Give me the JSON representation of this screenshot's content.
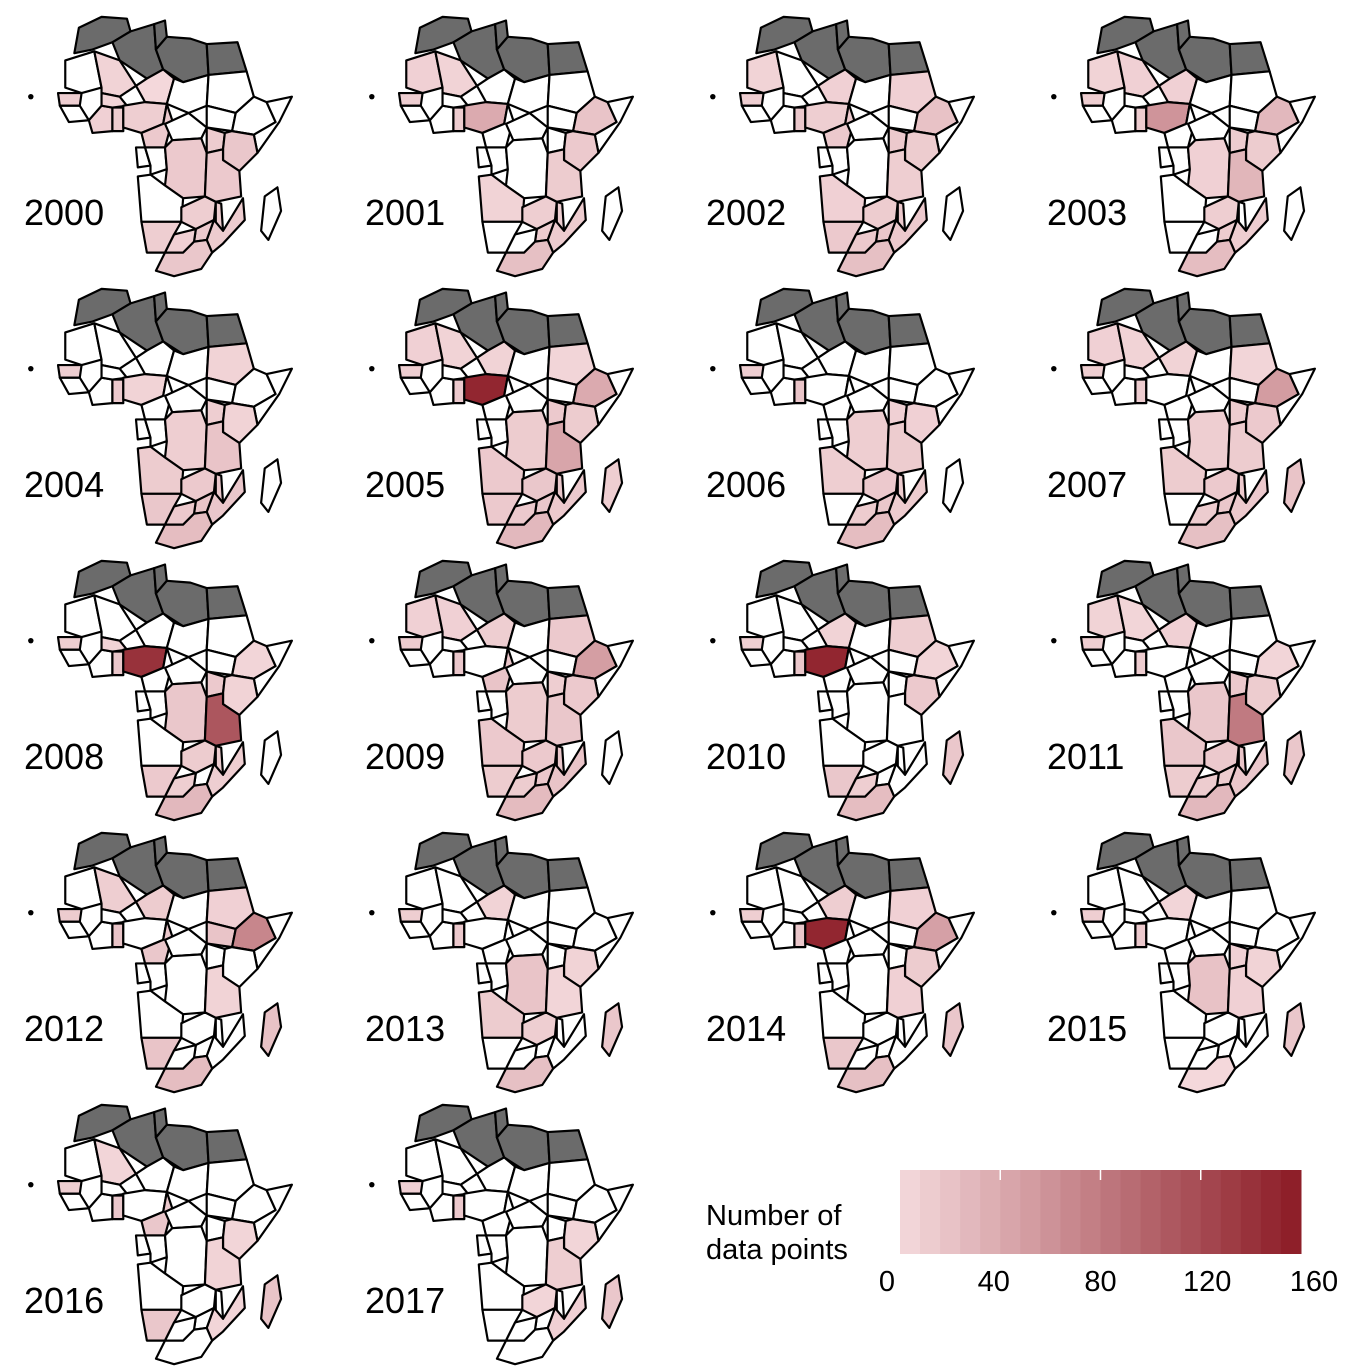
{
  "years": [
    "2000",
    "2001",
    "2002",
    "2003",
    "2004",
    "2005",
    "2006",
    "2007",
    "2008",
    "2009",
    "2010",
    "2011",
    "2012",
    "2013",
    "2014",
    "2015",
    "2016",
    "2017"
  ],
  "colors": {
    "excluded": "#6b6b6b",
    "zero": "#ffffff",
    "low": "#f5dadd",
    "high": "#8b1a24",
    "border": "#000000"
  },
  "legend": {
    "title_line1": "Number of",
    "title_line2": "data points",
    "ticks": [
      "0",
      "40",
      "80",
      "120",
      "160"
    ],
    "min": 0,
    "max": 160
  },
  "chart_data": {
    "type": "heatmap",
    "variable": "Number of data points",
    "region": "Africa",
    "excluded_regions": [
      "Morocco",
      "Algeria",
      "Tunisia",
      "Libya",
      "Egypt"
    ],
    "panels": [
      {
        "year": "2000",
        "values": {
          "Mali": 6,
          "Niger": 2,
          "Chad": 0,
          "Sudan": 0,
          "Nigeria": 10,
          "Ghana": 12,
          "Cote d'Ivoire": 8,
          "Burkina Faso": 4,
          "Cameroon": 14,
          "DR Congo": 14,
          "Uganda": 12,
          "Kenya": 16,
          "Tanzania": 14,
          "Zambia": 10,
          "Malawi": 12,
          "Mozambique": 12,
          "Zimbabwe": 14,
          "Namibia": 10,
          "Botswana": 8,
          "South Africa": 16,
          "Senegal": 10
        }
      },
      {
        "year": "2001",
        "values": {
          "Mauritania": 8,
          "Mali": 6,
          "Nigeria": 40,
          "Ethiopia": 18,
          "Kenya": 14,
          "Tanzania": 12,
          "Angola": 6,
          "Zambia": 10,
          "Malawi": 10,
          "Mozambique": 12,
          "Zimbabwe": 12,
          "South Africa": 22,
          "Senegal": 10,
          "Ghana": 12
        }
      },
      {
        "year": "2002",
        "values": {
          "Mauritania": 6,
          "Niger": 8,
          "Sudan": 8,
          "Ethiopia": 20,
          "Nigeria": 10,
          "Ghana": 16,
          "Cameroon": 14,
          "Uganda": 14,
          "Kenya": 12,
          "Tanzania": 10,
          "Angola": 8,
          "Zambia": 12,
          "Malawi": 14,
          "Mozambique": 14,
          "Zimbabwe": 16,
          "Namibia": 14,
          "Botswana": 14,
          "South Africa": 22,
          "Senegal": 10
        }
      },
      {
        "year": "2003",
        "values": {
          "Mauritania": 6,
          "Mali": 8,
          "Niger": 8,
          "Nigeria": 58,
          "Ethiopia": 28,
          "DR Congo": 8,
          "Uganda": 12,
          "Kenya": 12,
          "Tanzania": 30,
          "Zambia": 10,
          "Mozambique": 10,
          "Zimbabwe": 12,
          "South Africa": 24,
          "Senegal": 10,
          "Ghana": 12
        }
      },
      {
        "year": "2004",
        "values": {
          "Sudan": 6,
          "Nigeria": 6,
          "Ghana": 14,
          "DR Congo": 10,
          "Uganda": 10,
          "Kenya": 6,
          "Tanzania": 18,
          "Angola": 12,
          "Zambia": 14,
          "Malawi": 16,
          "Mozambique": 16,
          "Zimbabwe": 18,
          "Namibia": 16,
          "Botswana": 14,
          "South Africa": 24,
          "Senegal": 10
        }
      },
      {
        "year": "2005",
        "values": {
          "Mauritania": 8,
          "Mali": 6,
          "Niger": 6,
          "Sudan": 4,
          "Nigeria": 150,
          "Ethiopia": 40,
          "DR Congo": 12,
          "Uganda": 14,
          "Kenya": 12,
          "Tanzania": 44,
          "Angola": 14,
          "Zambia": 16,
          "Malawi": 16,
          "Mozambique": 14,
          "Zimbabwe": 16,
          "Namibia": 14,
          "Botswana": 14,
          "South Africa": 28,
          "Senegal": 10,
          "Ghana": 14,
          "Madagascar": 10
        }
      },
      {
        "year": "2006",
        "values": {
          "Ghana": 18,
          "DR Congo": 10,
          "Uganda": 8,
          "Kenya": 8,
          "Tanzania": 12,
          "Angola": 10,
          "Zambia": 14,
          "Malawi": 12,
          "Mozambique": 12,
          "Zimbabwe": 16,
          "Botswana": 12,
          "South Africa": 24,
          "Senegal": 10
        }
      },
      {
        "year": "2007",
        "values": {
          "Mauritania": 8,
          "Mali": 6,
          "Niger": 6,
          "Sudan": 4,
          "Ethiopia": 52,
          "DR Congo": 10,
          "Uganda": 12,
          "Kenya": 14,
          "Tanzania": 12,
          "Angola": 12,
          "Zambia": 14,
          "Malawi": 14,
          "Mozambique": 14,
          "Zimbabwe": 16,
          "Botswana": 12,
          "South Africa": 22,
          "Senegal": 10,
          "Ghana": 12,
          "Madagascar": 18
        }
      },
      {
        "year": "2008",
        "values": {
          "Nigeria": 140,
          "Ghana": 16,
          "Burkina Faso": 6,
          "Ethiopia": 4,
          "DR Congo": 16,
          "Tanzania": 110,
          "Uganda": 14,
          "Kenya": 6,
          "Zambia": 12,
          "Malawi": 12,
          "Mozambique": 10,
          "Namibia": 14,
          "Botswana": 10,
          "South Africa": 28,
          "Senegal": 10
        }
      },
      {
        "year": "2009",
        "values": {
          "Mauritania": 8,
          "Mali": 8,
          "Niger": 10,
          "Sudan": 14,
          "Ethiopia": 50,
          "Ghana": 16,
          "Cameroon": 18,
          "DR Congo": 12,
          "Uganda": 10,
          "Kenya": 14,
          "Tanzania": 16,
          "Angola": 14,
          "Zambia": 14,
          "Malawi": 16,
          "Mozambique": 18,
          "Zimbabwe": 16,
          "Namibia": 12,
          "Botswana": 12,
          "South Africa": 26,
          "Senegal": 12
        }
      },
      {
        "year": "2010",
        "values": {
          "Niger": 6,
          "Sudan": 10,
          "Nigeria": 150,
          "Ghana": 16,
          "Ethiopia": 4,
          "Kenya": 14,
          "Namibia": 16,
          "Botswana": 10,
          "South Africa": 24,
          "Senegal": 10,
          "Madagascar": 16
        }
      },
      {
        "year": "2011",
        "values": {
          "Mauritania": 6,
          "Mali": 4,
          "Niger": 8,
          "Ghana": 12,
          "Ethiopia": 4,
          "DR Congo": 16,
          "Uganda": 14,
          "Kenya": 12,
          "Tanzania": 80,
          "Angola": 16,
          "Zambia": 14,
          "Malawi": 18,
          "Mozambique": 16,
          "Zimbabwe": 12,
          "Namibia": 12,
          "Botswana": 12,
          "South Africa": 28,
          "Senegal": 10,
          "Madagascar": 16
        }
      },
      {
        "year": "2012",
        "values": {
          "Mali": 10,
          "Niger": 12,
          "Ghana": 18,
          "Cameroon": 16,
          "Ethiopia": 70,
          "Sudan": 8,
          "South Sudan": 18,
          "Tanzania": 6,
          "Namibia": 18,
          "South Africa": 24,
          "Senegal": 12,
          "Madagascar": 20
        }
      },
      {
        "year": "2013",
        "values": {
          "Niger": 6,
          "Ghana": 14,
          "DR Congo": 18,
          "Angola": 12,
          "Zambia": 10,
          "Kenya": 6,
          "Tanzania": 4,
          "South Africa": 22,
          "Senegal": 10,
          "Madagascar": 16
        }
      },
      {
        "year": "2014",
        "values": {
          "Niger": 10,
          "Sudan": 8,
          "Nigeria": 150,
          "Ghana": 16,
          "Ethiopia": 48,
          "Kenya": 12,
          "Tanzania": 8,
          "Namibia": 16,
          "South Africa": 22,
          "Senegal": 10,
          "Madagascar": 16
        }
      },
      {
        "year": "2015",
        "values": {
          "Niger": 4,
          "Ghana": 14,
          "DR Congo": 20,
          "Uganda": 8,
          "Kenya": 6,
          "Tanzania": 8,
          "South Africa": 2,
          "Senegal": 10,
          "Madagascar": 16
        }
      },
      {
        "year": "2016",
        "values": {
          "Mali": 4,
          "Ghana": 16,
          "Cameroon": 16,
          "Kenya": 4,
          "Tanzania": 6,
          "Namibia": 16,
          "Mozambique": 4,
          "Senegal": 10,
          "Madagascar": 18
        }
      },
      {
        "year": "2017",
        "values": {
          "Ghana": 14,
          "Kenya": 4,
          "Tanzania": 10,
          "Zambia": 4,
          "Mozambique": 8,
          "Senegal": 8,
          "Madagascar": 16
        }
      }
    ]
  }
}
